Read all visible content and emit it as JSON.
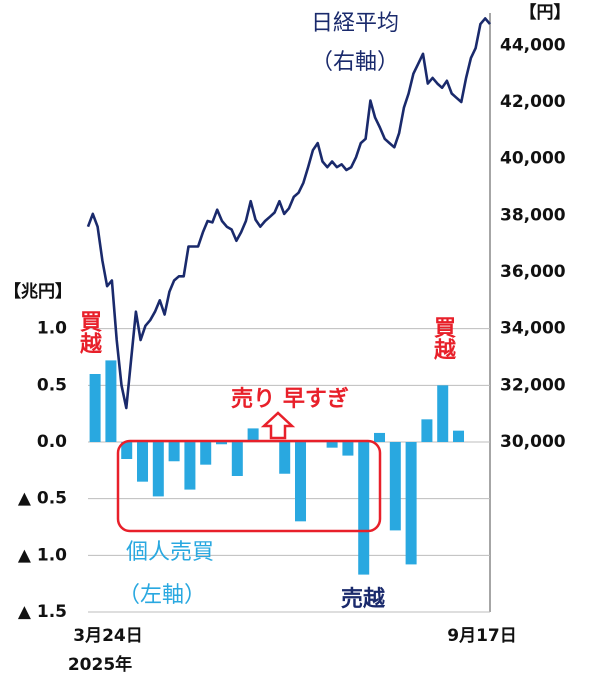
{
  "chart_data": {
    "type": "bar_line",
    "ylabel": "【兆円】",
    "y2label": "【円】",
    "ylim": [
      -1.5,
      3.75
    ],
    "yticks": [
      {
        "value": 1,
        "label": "1.0"
      },
      {
        "value": 0.5,
        "label": "0.5"
      },
      {
        "value": 0,
        "label": "0.0"
      },
      {
        "value": -0.5,
        "label": "▲ 0.5"
      },
      {
        "value": -1,
        "label": "▲ 1.0"
      },
      {
        "value": -1.5,
        "label": "▲ 1.5"
      }
    ],
    "y2lim": [
      24000,
      45000
    ],
    "y2ticks": [
      {
        "value": 30000,
        "label": "30,000"
      },
      {
        "value": 32000,
        "label": "32,000"
      },
      {
        "value": 34000,
        "label": "34,000"
      },
      {
        "value": 36000,
        "label": "36,000"
      },
      {
        "value": 38000,
        "label": "38,000"
      },
      {
        "value": 40000,
        "label": "40,000"
      },
      {
        "value": 42000,
        "label": "42,000"
      },
      {
        "value": 44000,
        "label": "44,000"
      }
    ],
    "grid": true,
    "x_start_label": "3月24日",
    "x_end_label": "9月17日",
    "year_label": "2025年",
    "series": [
      {
        "name": "個人売買",
        "type": "bar",
        "axis": "y",
        "color": "#29a8e0",
        "values": [
          0.6,
          0.72,
          -0.15,
          -0.35,
          -0.48,
          -0.17,
          -0.42,
          -0.2,
          -0.02,
          -0.3,
          0.12,
          0,
          -0.28,
          -0.7,
          0,
          -0.05,
          -0.12,
          -1.17,
          0.08,
          -0.78,
          -1.08,
          0.2,
          0.5,
          0.1
        ]
      },
      {
        "name": "日経平均",
        "type": "line",
        "axis": "y2",
        "color": "#1a2a6c",
        "values": [
          37600,
          38050,
          37600,
          36400,
          35500,
          35700,
          33600,
          32000,
          31200,
          32900,
          34600,
          33600,
          34100,
          34300,
          34600,
          35000,
          34500,
          35300,
          35700,
          35850,
          35850,
          36900,
          36900,
          36900,
          37400,
          37800,
          37750,
          38200,
          37800,
          37600,
          37500,
          37100,
          37400,
          37800,
          38500,
          37850,
          37600,
          37800,
          37950,
          38100,
          38500,
          38050,
          38250,
          38650,
          38800,
          39150,
          39700,
          40300,
          40550,
          39900,
          39700,
          39900,
          39700,
          39800,
          39600,
          39700,
          40050,
          40550,
          40700,
          42050,
          41450,
          41100,
          40700,
          40550,
          40400,
          40900,
          41800,
          42300,
          43000,
          43350,
          43700,
          42650,
          42850,
          42650,
          42500,
          42750,
          42300,
          42150,
          42000,
          42850,
          43550,
          43900,
          44750,
          44950,
          44750
        ]
      }
    ],
    "annotations": {
      "right_axis_note": "（右軸）",
      "left_axis_note": "（左軸）",
      "early_selling": "売り 早すぎ",
      "net_buy_left": "買越",
      "net_buy_right": "買越",
      "net_sell": "売越"
    }
  }
}
